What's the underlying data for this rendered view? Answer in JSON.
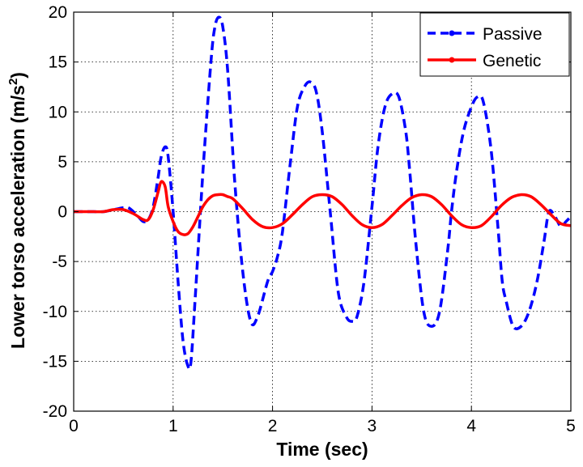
{
  "chart_data": {
    "type": "line",
    "xlabel": "Time (sec)",
    "ylabel": "Lower torso acceleration (m/s",
    "ylabel_sup": "2",
    "ylabel_end": ")",
    "xlim": [
      0,
      5
    ],
    "ylim": [
      -20,
      20
    ],
    "xticks": [
      "0",
      "1",
      "2",
      "3",
      "4",
      "5"
    ],
    "yticks": [
      "-20",
      "-15",
      "-10",
      "-5",
      "0",
      "5",
      "10",
      "15",
      "20"
    ],
    "grid": true,
    "legend_position": "top-right",
    "series": [
      {
        "name": "Passive",
        "color": "#0000ff",
        "style": "dashed",
        "x": [
          0,
          0.1,
          0.2,
          0.3,
          0.4,
          0.45,
          0.5,
          0.55,
          0.6,
          0.65,
          0.7,
          0.75,
          0.8,
          0.85,
          0.88,
          0.92,
          0.95,
          1.0,
          1.05,
          1.1,
          1.15,
          1.18,
          1.22,
          1.3,
          1.38,
          1.42,
          1.46,
          1.5,
          1.55,
          1.62,
          1.7,
          1.78,
          1.85,
          1.95,
          2.0,
          2.05,
          2.1,
          2.18,
          2.25,
          2.32,
          2.38,
          2.44,
          2.5,
          2.58,
          2.66,
          2.74,
          2.8,
          2.85,
          2.92,
          3.0,
          3.06,
          3.13,
          3.2,
          3.27,
          3.34,
          3.38,
          3.44,
          3.52,
          3.6,
          3.68,
          3.76,
          3.8,
          3.85,
          3.92,
          4.0,
          4.06,
          4.12,
          4.2,
          4.27,
          4.31,
          4.35,
          4.42,
          4.5,
          4.58,
          4.66,
          4.73,
          4.78,
          4.84,
          4.9,
          4.95,
          5.0
        ],
        "y": [
          0,
          0,
          0,
          0,
          0.2,
          0.3,
          0.4,
          0.4,
          0,
          -0.5,
          -1,
          -0.8,
          0.5,
          3.5,
          5.5,
          6.5,
          5.5,
          0,
          -7,
          -13,
          -15.5,
          -15,
          -9,
          4,
          15,
          18.5,
          19.5,
          18.5,
          14,
          3,
          -6,
          -11,
          -10.5,
          -7,
          -6,
          -4.5,
          -2,
          5,
          10.5,
          12.5,
          13,
          12,
          8,
          0,
          -8,
          -10.5,
          -11,
          -10.5,
          -7,
          0.5,
          6.5,
          10.5,
          11.8,
          11.5,
          8,
          4,
          -3,
          -10,
          -11.5,
          -10,
          -4,
          0,
          4,
          8,
          10.5,
          11.5,
          11,
          6,
          -2,
          -7,
          -9,
          -11.5,
          -11.5,
          -10,
          -7,
          -3,
          0,
          -0.5,
          -1.5,
          -1,
          -0.5
        ]
      },
      {
        "name": "Genetic",
        "color": "#ff0000",
        "style": "solid",
        "x": [
          0,
          0.1,
          0.2,
          0.3,
          0.4,
          0.5,
          0.6,
          0.7,
          0.75,
          0.8,
          0.85,
          0.88,
          0.92,
          0.95,
          1.0,
          1.05,
          1.1,
          1.15,
          1.2,
          1.25,
          1.3,
          1.35,
          1.4,
          1.45,
          1.5,
          1.55,
          1.6,
          1.7,
          1.8,
          1.9,
          2.0,
          2.1,
          2.2,
          2.3,
          2.4,
          2.5,
          2.6,
          2.7,
          2.8,
          2.9,
          3.0,
          3.1,
          3.2,
          3.3,
          3.4,
          3.5,
          3.6,
          3.7,
          3.8,
          3.9,
          4.0,
          4.1,
          4.2,
          4.3,
          4.4,
          4.5,
          4.6,
          4.7,
          4.8,
          4.9,
          5.0
        ],
        "y": [
          0,
          0,
          0,
          0,
          0.2,
          0.2,
          -0.2,
          -0.8,
          -0.8,
          0.2,
          2,
          3,
          2.5,
          0.5,
          -1,
          -2,
          -2.3,
          -2.2,
          -1.5,
          -0.5,
          0.5,
          1.2,
          1.6,
          1.7,
          1.7,
          1.5,
          1.3,
          0.3,
          -0.8,
          -1.5,
          -1.6,
          -1.2,
          -0.3,
          0.7,
          1.5,
          1.7,
          1.5,
          0.7,
          -0.4,
          -1.3,
          -1.6,
          -1.3,
          -0.4,
          0.6,
          1.4,
          1.7,
          1.5,
          0.7,
          -0.4,
          -1.3,
          -1.6,
          -1.4,
          -0.5,
          0.6,
          1.4,
          1.7,
          1.5,
          0.7,
          -0.3,
          -1.2,
          -1.4
        ]
      }
    ]
  }
}
